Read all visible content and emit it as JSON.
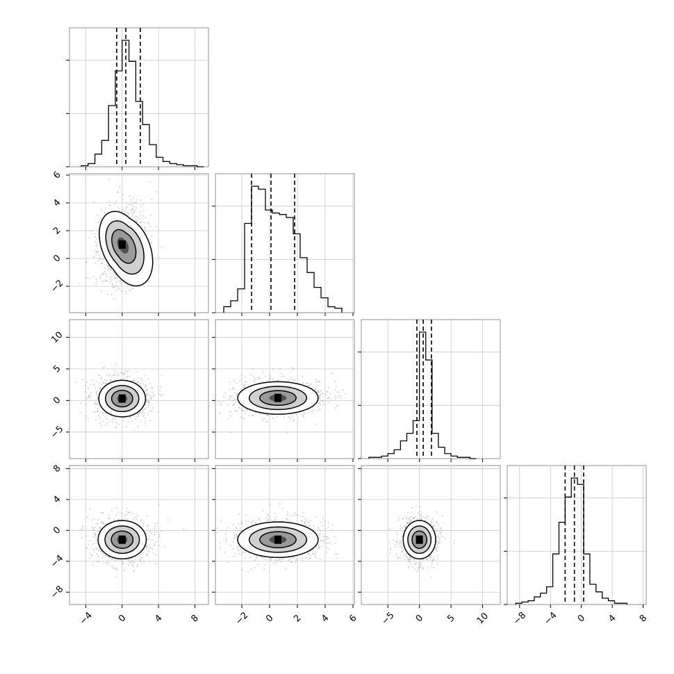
{
  "chart_data": {
    "type": "corner",
    "grid": true,
    "axis_tick_labels": [
      {
        "axis": "x",
        "column": 0,
        "values": [
          -4,
          0,
          4,
          8
        ],
        "labels": [
          "−4",
          "0",
          "4",
          "8"
        ],
        "xlim": [
          -5.8,
          9.5
        ]
      },
      {
        "axis": "x",
        "column": 1,
        "values": [
          -2,
          0,
          2,
          4,
          6
        ],
        "labels": [
          "−2",
          "0",
          "2",
          "4",
          "6"
        ],
        "xlim": [
          -3.9,
          6.1
        ]
      },
      {
        "axis": "x",
        "column": 2,
        "values": [
          -5,
          0,
          5,
          10
        ],
        "labels": [
          "−5",
          "0",
          "5",
          "10"
        ],
        "xlim": [
          -9.2,
          12.8
        ]
      },
      {
        "axis": "x",
        "column": 3,
        "values": [
          -8,
          -4,
          0,
          4,
          8
        ],
        "labels": [
          "−8",
          "−4",
          "0",
          "4",
          "8"
        ],
        "xlim": [
          -9.6,
          8.4
        ]
      },
      {
        "axis": "y",
        "row": 1,
        "values": [
          -2,
          0,
          2,
          4,
          6
        ],
        "labels": [
          "−2",
          "0",
          "2",
          "4",
          "6"
        ],
        "ylim": [
          -3.9,
          6.1
        ]
      },
      {
        "axis": "y",
        "row": 2,
        "values": [
          -5,
          0,
          5,
          10
        ],
        "labels": [
          "−5",
          "0",
          "5",
          "10"
        ],
        "ylim": [
          -9.2,
          12.8
        ]
      },
      {
        "axis": "y",
        "row": 3,
        "values": [
          -8,
          -4,
          0,
          4,
          8
        ],
        "labels": [
          "−8",
          "−4",
          "0",
          "4",
          "8"
        ],
        "ylim": [
          -9.6,
          8.4
        ]
      }
    ],
    "panels": [
      {
        "type": "histogram",
        "variable": 0,
        "bins": [
          -4.5,
          -3.75,
          -3.0,
          -2.25,
          -1.5,
          -0.75,
          0.0,
          0.75,
          1.5,
          2.25,
          3.0,
          3.75,
          4.5,
          5.25,
          6.0,
          6.75,
          7.5,
          8.25,
          9.0
        ],
        "counts": [
          1,
          3,
          12,
          25,
          58,
          91,
          120,
          100,
          62,
          40,
          21,
          9,
          5,
          3,
          2,
          1,
          1,
          0
        ],
        "quantiles": [
          -0.6,
          0.4,
          2.0
        ]
      },
      {
        "type": "histogram",
        "variable": 1,
        "bins": [
          -3.3,
          -2.8,
          -2.3,
          -1.8,
          -1.3,
          -0.8,
          -0.3,
          0.2,
          0.7,
          1.2,
          1.7,
          2.2,
          2.7,
          3.2,
          3.7,
          4.2,
          4.7,
          5.2
        ],
        "counts": [
          4,
          8,
          16,
          60,
          85,
          83,
          69,
          67,
          66,
          64,
          53,
          37,
          27,
          17,
          10,
          4,
          3
        ],
        "quantiles": [
          -1.3,
          0.1,
          1.8
        ]
      },
      {
        "type": "histogram",
        "variable": 2,
        "bins": [
          -8,
          -7,
          -6,
          -5,
          -4,
          -3,
          -2,
          -1,
          0,
          1,
          2,
          3,
          4,
          5,
          6,
          7,
          8,
          9
        ],
        "counts": [
          1,
          1,
          2,
          4,
          7,
          14,
          20,
          30,
          100,
          78,
          20,
          9,
          4,
          2,
          1,
          1,
          0
        ],
        "quantiles": [
          -0.4,
          0.6,
          1.9
        ]
      },
      {
        "type": "histogram",
        "variable": 3,
        "bins": [
          -8.5,
          -7.7,
          -6.9,
          -6.1,
          -5.3,
          -4.5,
          -3.7,
          -2.9,
          -2.1,
          -1.3,
          -0.5,
          0.3,
          1.1,
          1.9,
          2.7,
          3.5,
          4.3,
          5.1,
          5.9
        ],
        "counts": [
          1,
          2,
          3,
          6,
          9,
          14,
          40,
          65,
          85,
          100,
          95,
          40,
          16,
          10,
          5,
          3,
          1,
          1
        ],
        "quantiles": [
          -2.1,
          -0.9,
          0.3
        ]
      },
      {
        "type": "contour",
        "x_variable": 0,
        "y_variable": 1,
        "peak": [
          0,
          1
        ],
        "cov": [
          [
            1.2,
            -0.55
          ],
          [
            -0.55,
            1.4
          ]
        ],
        "tail_toward": [
          1.5,
          -1.2
        ]
      },
      {
        "type": "contour",
        "x_variable": 0,
        "y_variable": 2,
        "peak": [
          0,
          0.3
        ],
        "cov": [
          [
            1.5,
            0.0
          ],
          [
            0.0,
            1.9
          ]
        ]
      },
      {
        "type": "contour",
        "x_variable": 1,
        "y_variable": 2,
        "peak": [
          0.6,
          0.4
        ],
        "cov": [
          [
            1.9,
            0.0
          ],
          [
            0.0,
            1.5
          ]
        ]
      },
      {
        "type": "contour",
        "x_variable": 0,
        "y_variable": 3,
        "peak": [
          0,
          -1.2
        ],
        "cov": [
          [
            1.6,
            0.0
          ],
          [
            0.0,
            1.4
          ]
        ]
      },
      {
        "type": "contour",
        "x_variable": 1,
        "y_variable": 3,
        "peak": [
          0.6,
          -1.2
        ],
        "cov": [
          [
            1.9,
            0.0
          ],
          [
            0.0,
            1.2
          ]
        ]
      },
      {
        "type": "contour",
        "x_variable": 2,
        "y_variable": 3,
        "peak": [
          0,
          -1.2
        ],
        "cov": [
          [
            1.5,
            0.0
          ],
          [
            0.0,
            1.4
          ]
        ]
      }
    ]
  }
}
